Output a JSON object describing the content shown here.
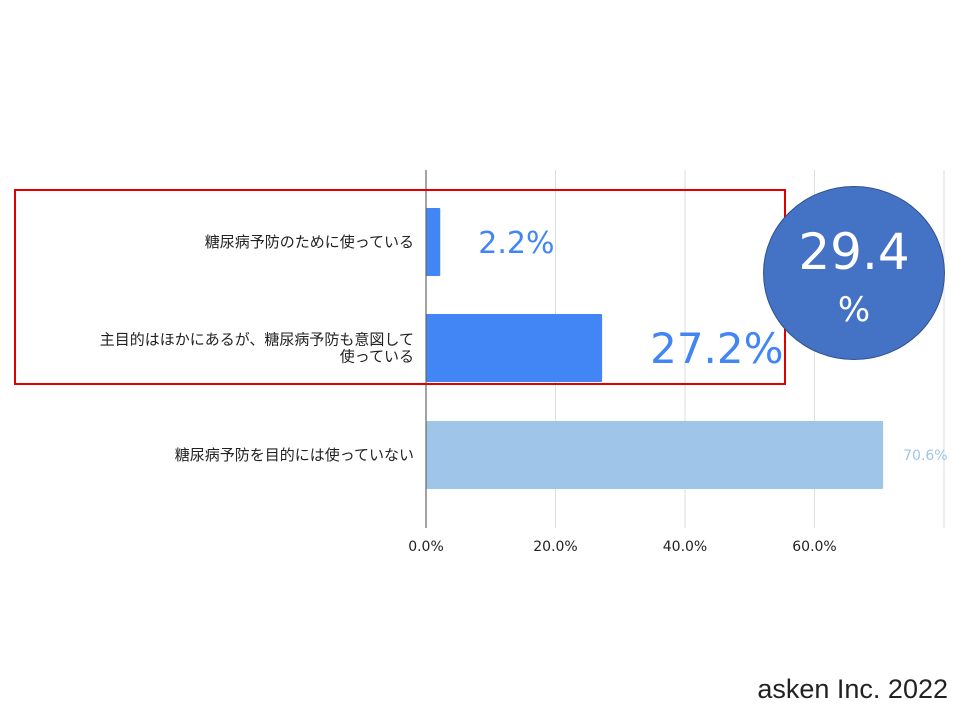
{
  "chart_data": {
    "type": "bar",
    "orientation": "horizontal",
    "categories": [
      [
        "糖尿病予防のために使っている"
      ],
      [
        "主目的はほかにあるが、糖尿病予防も意図して",
        "使っている"
      ],
      [
        "糖尿病予防を目的には使っていない"
      ]
    ],
    "values": [
      2.2,
      27.2,
      70.6
    ],
    "value_labels": [
      "2.2%",
      "27.2%",
      "70.6%"
    ],
    "bar_colors": [
      "#4285f4",
      "#4285f4",
      "#9fc5e8"
    ],
    "xlim": [
      0,
      80
    ],
    "x_ticks": [
      0,
      20,
      40,
      60
    ],
    "x_tick_labels": [
      "0.0%",
      "20.0%",
      "40.0%",
      "60.0%"
    ],
    "grid": true,
    "title": "",
    "xlabel": "",
    "ylabel": ""
  },
  "callout": {
    "value": "29.4",
    "unit": "%",
    "color": "#4472c4"
  },
  "highlight_color": "#e00000",
  "copyright": "asken Inc. 2022"
}
